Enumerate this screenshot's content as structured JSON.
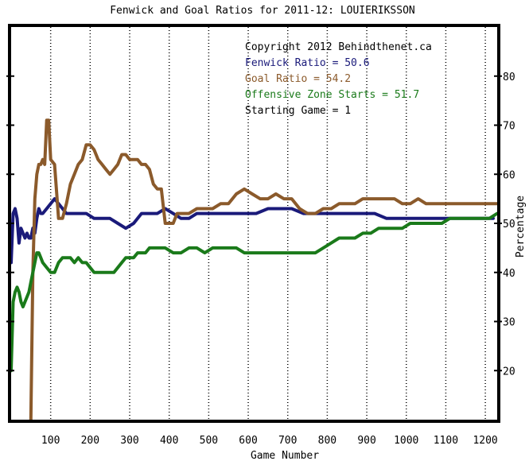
{
  "chart_data": {
    "type": "line",
    "title": "Fenwick and Goal Ratios for 2011-12: LOUIERIKSSON",
    "xlabel": "Game Number",
    "ylabel": "Percentage",
    "xlim": [
      0,
      1230
    ],
    "ylim": [
      10,
      90
    ],
    "x_ticks": [
      100,
      200,
      300,
      400,
      500,
      600,
      700,
      800,
      900,
      1000,
      1100,
      1200
    ],
    "y_ticks": [
      20,
      30,
      40,
      50,
      60,
      70,
      80
    ],
    "grid": "vertical dotted",
    "legend_lines": [
      {
        "text": "Copyright 2012 Behindthenet.ca",
        "color": "#000000"
      },
      {
        "text": "Fenwick Ratio = 50.6",
        "color": "#1a1a7a"
      },
      {
        "text": "Goal Ratio = 54.2",
        "color": "#8b5a2b"
      },
      {
        "text": "Offensive Zone Starts = 51.7",
        "color": "#1a7a1a"
      },
      {
        "text": "Starting Game = 1",
        "color": "#000000"
      }
    ],
    "series": [
      {
        "name": "Fenwick Ratio",
        "color": "#1a1a7a",
        "points": [
          [
            0,
            42
          ],
          [
            5,
            52
          ],
          [
            10,
            53
          ],
          [
            15,
            51
          ],
          [
            20,
            46
          ],
          [
            25,
            49
          ],
          [
            30,
            48
          ],
          [
            35,
            47
          ],
          [
            40,
            48
          ],
          [
            45,
            47
          ],
          [
            50,
            47
          ],
          [
            55,
            49
          ],
          [
            60,
            48
          ],
          [
            65,
            51
          ],
          [
            70,
            53
          ],
          [
            75,
            52
          ],
          [
            80,
            52
          ],
          [
            90,
            53
          ],
          [
            100,
            54
          ],
          [
            110,
            55
          ],
          [
            120,
            54
          ],
          [
            130,
            53
          ],
          [
            140,
            52
          ],
          [
            150,
            52
          ],
          [
            170,
            52
          ],
          [
            190,
            52
          ],
          [
            210,
            51
          ],
          [
            230,
            51
          ],
          [
            250,
            51
          ],
          [
            270,
            50
          ],
          [
            290,
            49
          ],
          [
            310,
            50
          ],
          [
            330,
            52
          ],
          [
            350,
            52
          ],
          [
            370,
            52
          ],
          [
            390,
            53
          ],
          [
            410,
            52
          ],
          [
            430,
            51
          ],
          [
            450,
            51
          ],
          [
            470,
            52
          ],
          [
            500,
            52
          ],
          [
            530,
            52
          ],
          [
            560,
            52
          ],
          [
            590,
            52
          ],
          [
            620,
            52
          ],
          [
            650,
            53
          ],
          [
            680,
            53
          ],
          [
            710,
            53
          ],
          [
            740,
            52
          ],
          [
            770,
            52
          ],
          [
            800,
            52
          ],
          [
            830,
            52
          ],
          [
            860,
            52
          ],
          [
            890,
            52
          ],
          [
            920,
            52
          ],
          [
            950,
            51
          ],
          [
            980,
            51
          ],
          [
            1010,
            51
          ],
          [
            1040,
            51
          ],
          [
            1070,
            51
          ],
          [
            1100,
            51
          ],
          [
            1130,
            51
          ],
          [
            1160,
            51
          ],
          [
            1190,
            51
          ],
          [
            1220,
            51
          ]
        ]
      },
      {
        "name": "Goal Ratio",
        "color": "#8b5a2b",
        "points": [
          [
            50,
            10
          ],
          [
            55,
            40
          ],
          [
            60,
            55
          ],
          [
            65,
            60
          ],
          [
            70,
            62
          ],
          [
            75,
            62
          ],
          [
            80,
            63
          ],
          [
            85,
            62
          ],
          [
            90,
            71
          ],
          [
            95,
            71
          ],
          [
            100,
            63
          ],
          [
            110,
            62
          ],
          [
            120,
            51
          ],
          [
            130,
            51
          ],
          [
            140,
            54
          ],
          [
            150,
            58
          ],
          [
            160,
            60
          ],
          [
            170,
            62
          ],
          [
            180,
            63
          ],
          [
            190,
            66
          ],
          [
            200,
            66
          ],
          [
            210,
            65
          ],
          [
            220,
            63
          ],
          [
            230,
            62
          ],
          [
            240,
            61
          ],
          [
            250,
            60
          ],
          [
            260,
            61
          ],
          [
            270,
            62
          ],
          [
            280,
            64
          ],
          [
            290,
            64
          ],
          [
            300,
            63
          ],
          [
            310,
            63
          ],
          [
            320,
            63
          ],
          [
            330,
            62
          ],
          [
            340,
            62
          ],
          [
            350,
            61
          ],
          [
            360,
            58
          ],
          [
            370,
            57
          ],
          [
            380,
            57
          ],
          [
            390,
            50
          ],
          [
            400,
            50
          ],
          [
            410,
            50
          ],
          [
            420,
            52
          ],
          [
            430,
            52
          ],
          [
            450,
            52
          ],
          [
            470,
            53
          ],
          [
            490,
            53
          ],
          [
            510,
            53
          ],
          [
            530,
            54
          ],
          [
            550,
            54
          ],
          [
            570,
            56
          ],
          [
            590,
            57
          ],
          [
            610,
            56
          ],
          [
            630,
            55
          ],
          [
            650,
            55
          ],
          [
            670,
            56
          ],
          [
            690,
            55
          ],
          [
            710,
            55
          ],
          [
            730,
            53
          ],
          [
            750,
            52
          ],
          [
            770,
            52
          ],
          [
            790,
            53
          ],
          [
            810,
            53
          ],
          [
            830,
            54
          ],
          [
            850,
            54
          ],
          [
            870,
            54
          ],
          [
            890,
            55
          ],
          [
            910,
            55
          ],
          [
            930,
            55
          ],
          [
            950,
            55
          ],
          [
            970,
            55
          ],
          [
            990,
            54
          ],
          [
            1010,
            54
          ],
          [
            1030,
            55
          ],
          [
            1050,
            54
          ],
          [
            1070,
            54
          ],
          [
            1090,
            54
          ],
          [
            1110,
            54
          ],
          [
            1130,
            54
          ],
          [
            1150,
            54
          ],
          [
            1170,
            54
          ],
          [
            1190,
            54
          ],
          [
            1210,
            54
          ],
          [
            1230,
            54
          ]
        ]
      },
      {
        "name": "Offensive Zone Starts",
        "color": "#1a7a1a",
        "points": [
          [
            0,
            20
          ],
          [
            5,
            34
          ],
          [
            10,
            36
          ],
          [
            15,
            37
          ],
          [
            20,
            36
          ],
          [
            25,
            34
          ],
          [
            30,
            33
          ],
          [
            35,
            34
          ],
          [
            40,
            35
          ],
          [
            45,
            36
          ],
          [
            50,
            38
          ],
          [
            55,
            40
          ],
          [
            60,
            42
          ],
          [
            65,
            44
          ],
          [
            70,
            44
          ],
          [
            75,
            43
          ],
          [
            80,
            42
          ],
          [
            90,
            41
          ],
          [
            100,
            40
          ],
          [
            110,
            40
          ],
          [
            120,
            42
          ],
          [
            130,
            43
          ],
          [
            140,
            43
          ],
          [
            150,
            43
          ],
          [
            160,
            42
          ],
          [
            170,
            43
          ],
          [
            180,
            42
          ],
          [
            190,
            42
          ],
          [
            200,
            41
          ],
          [
            210,
            40
          ],
          [
            220,
            40
          ],
          [
            230,
            40
          ],
          [
            240,
            40
          ],
          [
            250,
            40
          ],
          [
            260,
            40
          ],
          [
            270,
            41
          ],
          [
            280,
            42
          ],
          [
            290,
            43
          ],
          [
            300,
            43
          ],
          [
            310,
            43
          ],
          [
            320,
            44
          ],
          [
            330,
            44
          ],
          [
            340,
            44
          ],
          [
            350,
            45
          ],
          [
            370,
            45
          ],
          [
            390,
            45
          ],
          [
            410,
            44
          ],
          [
            430,
            44
          ],
          [
            450,
            45
          ],
          [
            470,
            45
          ],
          [
            490,
            44
          ],
          [
            510,
            45
          ],
          [
            530,
            45
          ],
          [
            550,
            45
          ],
          [
            570,
            45
          ],
          [
            590,
            44
          ],
          [
            610,
            44
          ],
          [
            630,
            44
          ],
          [
            650,
            44
          ],
          [
            670,
            44
          ],
          [
            690,
            44
          ],
          [
            710,
            44
          ],
          [
            730,
            44
          ],
          [
            750,
            44
          ],
          [
            770,
            44
          ],
          [
            790,
            45
          ],
          [
            810,
            46
          ],
          [
            830,
            47
          ],
          [
            850,
            47
          ],
          [
            870,
            47
          ],
          [
            890,
            48
          ],
          [
            910,
            48
          ],
          [
            930,
            49
          ],
          [
            950,
            49
          ],
          [
            970,
            49
          ],
          [
            990,
            49
          ],
          [
            1010,
            50
          ],
          [
            1030,
            50
          ],
          [
            1050,
            50
          ],
          [
            1070,
            50
          ],
          [
            1090,
            50
          ],
          [
            1110,
            51
          ],
          [
            1130,
            51
          ],
          [
            1150,
            51
          ],
          [
            1170,
            51
          ],
          [
            1190,
            51
          ],
          [
            1210,
            51
          ],
          [
            1230,
            52
          ]
        ]
      }
    ]
  }
}
